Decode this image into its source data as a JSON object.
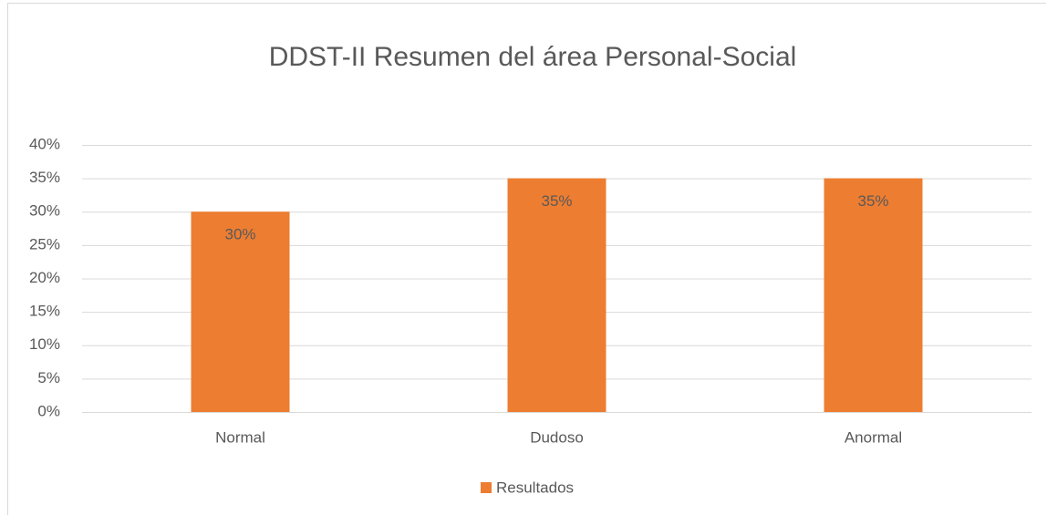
{
  "chart_data": {
    "type": "bar",
    "title": "DDST-II Resumen del área Personal-Social",
    "categories": [
      "Normal",
      "Dudoso",
      "Anormal"
    ],
    "series": [
      {
        "name": "Resultados",
        "color": "#ed7d31",
        "values": [
          30,
          35,
          35
        ],
        "value_labels": [
          "30%",
          "35%",
          "35%"
        ]
      }
    ],
    "ylim": [
      0,
      40
    ],
    "yticks": [
      {
        "value": 0,
        "label": "0%"
      },
      {
        "value": 5,
        "label": "5%"
      },
      {
        "value": 10,
        "label": "10%"
      },
      {
        "value": 15,
        "label": "15%"
      },
      {
        "value": 20,
        "label": "20%"
      },
      {
        "value": 25,
        "label": "25%"
      },
      {
        "value": 30,
        "label": "30%"
      },
      {
        "value": 35,
        "label": "35%"
      },
      {
        "value": 40,
        "label": "40%"
      }
    ],
    "grid": true,
    "legend": "bottom"
  }
}
